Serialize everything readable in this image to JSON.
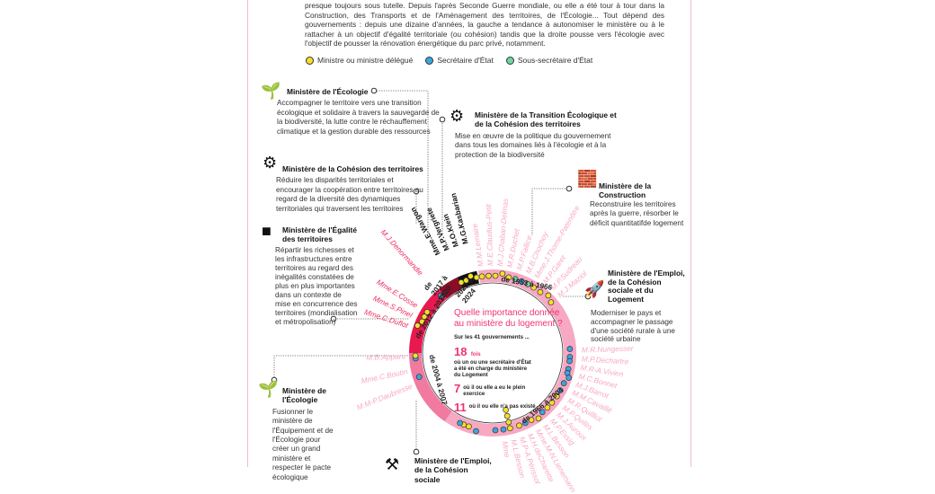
{
  "intro": "presque toujours sous tutelle. Depuis l'après Seconde Guerre mondiale, ou elle a été tour à tour dans la Construction, des Transports et de l'Aménagement des territoires, de l'Écologie... Tout dépend des gouvernements : depuis une dizaine d'années, la gauche a tendance à autonomiser le ministère ou à le rattacher à un objectif d'égalité territoriale (ou cohésion) tandis que la droite pousse vers l'écologie avec l'objectif de pousser la rénovation énergétique du parc privé, notamment.",
  "legend": [
    {
      "label": "Ministre ou ministre délégué",
      "color": "#f5e027"
    },
    {
      "label": "Secrétaire d'État",
      "color": "#3aa7dd"
    },
    {
      "label": "Sous-secrétaire d'État",
      "color": "#6fd6a0"
    }
  ],
  "ministries": [
    {
      "title": "Ministère de l'Écologie",
      "desc": "Accompagner le territoire vers une transition écologique et solidaire à travers la sauvegarde de la biodiversité, la lutte contre le réchauffement climatique et la gestion durable des ressources",
      "icon": "plant-hand-icon"
    },
    {
      "title": "Ministère de la Transition Écologique et de la Cohésion des territoires",
      "desc": "Mise en œuvre de la politique du gouvernement dans tous les domaines liés à l'écologie et à la protection de la biodiversité",
      "icon": "plant-gears-hand-icon"
    },
    {
      "title": "Ministère de la Cohésion des territoires",
      "desc": "Réduire les disparités territoriales et encourager la coopération entre territoires au regard de la diversité des dynamiques territoriales qui traversent les territoires",
      "icon": "gears-icon"
    },
    {
      "title": "Ministère de la Construction",
      "desc": "Reconstruire les territoires après la guerre, résorber le déficit quantitatifde logement",
      "icon": "builder-bricks-icon"
    },
    {
      "title": "Ministère de l'Égalité des territoires",
      "desc": "Répartir les richesses et les infrastructures entre territoires au regard des inégalités constatées de plus en plus importantes dans un contexte de mise en concurrence des territoires (mondialisation et métropolisation)",
      "icon": "france-map-icon"
    },
    {
      "title": "Ministère de l'Emploi, de la Cohésion sociale et du Logement",
      "desc": "Moderniser le pays et accompagner le passage d'une société rurale à une société urbaine",
      "icon": "rocket-icon"
    },
    {
      "title": "Ministère de l'Écologie",
      "desc": "Fusionner le ministère de l'Équipement et de l'Écologie pour créer un grand ministère et respecter le pacte écologique",
      "icon": "plant-hand-icon"
    },
    {
      "title": "Ministère de l'Emploi, de la Cohésion sociale",
      "desc": "",
      "icon": "tools-icon"
    }
  ],
  "center": {
    "question": "Quelle importance donnée au ministère du logement ?",
    "subtitle": "Sur les 41 gouvernements ...",
    "stat1_num": "18",
    "stat1_unit": "fois",
    "stat1_text": "où un ou une secrétaire d'État a été en charge du ministère du Logement",
    "stat2_num": "7",
    "stat2_text": "où il ou elle a eu le plein exercice",
    "stat3_num": "11",
    "stat3_text": "où il ou elle n'a pas existé"
  },
  "periods": [
    "de 1953 à 1966",
    "de 1966 à 2004",
    "de 2004 à 2007",
    "de 2012 à 2017",
    "de 2017 à 2020",
    "2020 à 2024"
  ],
  "names": {
    "top_right": [
      "M.M.Lemaire",
      "M.E.Claudius-Petit",
      "M.J.Chaban-Delmas",
      "M.R.Duchet",
      "M.P.Fallice",
      "M.B.Chochoy",
      "Mme.J.Thome-Patenôtre",
      "M.P.Garet",
      "M.P.Sudreau",
      "M.J.Maziol"
    ],
    "right": [
      "M.R.Nungesser",
      "M.P.Dechartre",
      "M.R-A.Vivien",
      "M.C.Bonnet",
      "M.J.Barrot",
      "M.M.Cavaillé",
      "M.R.Quilliot",
      "M.P.Quilès",
      "M.J.Auroux",
      "M.P.Essig",
      "M.L.Besson",
      "Mme.M-N.Lienemann",
      "M.H.deCharette",
      "M.P-A.Périssol",
      "M.L.Besson",
      "Mme"
    ],
    "recent": [
      "Mme.E.Wargon",
      "M.P.Vergriete",
      "M.O.Klein",
      "M.G.Kasbarian"
    ],
    "denormandie": [
      "M.J.Denormandie"
    ],
    "left_red": [
      "Mme.E.Cosse",
      "Mme.S.Pinel",
      "Mme.C.Duflot"
    ],
    "left": [
      "M.B.Apparu",
      "Mme.C.Boutin",
      "M.M-P.Daubresse"
    ]
  },
  "ring_colors": {
    "light": "#f7a8c3",
    "medium": "#f07aa0",
    "red": "#e8194f",
    "darkred": "#8a0d27",
    "black": "#111111"
  }
}
